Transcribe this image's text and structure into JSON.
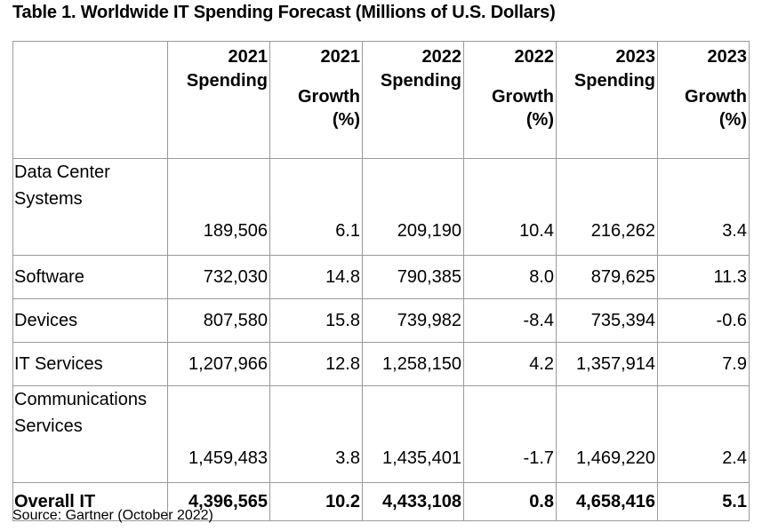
{
  "title": "Table 1. Worldwide IT Spending Forecast (Millions of U.S. Dollars)",
  "headers": [
    {
      "line1": "",
      "line2": ""
    },
    {
      "line1": "2021",
      "line2": "Spending"
    },
    {
      "line1": "2021",
      "line2": "Growth",
      "line3": "(%)"
    },
    {
      "line1": "2022",
      "line2": "Spending"
    },
    {
      "line1": "2022",
      "line2": "Growth",
      "line3": "(%)"
    },
    {
      "line1": "2023",
      "line2": "Spending"
    },
    {
      "line1": "2023",
      "line2": "Growth",
      "line3": "(%)"
    }
  ],
  "rows": [
    {
      "label_l1": "Data Center",
      "label_l2": "Systems",
      "values": [
        "189,506",
        "6.1",
        "209,190",
        "10.4",
        "216,262",
        "3.4"
      ]
    },
    {
      "label_l1": "Software",
      "values": [
        "732,030",
        "14.8",
        "790,385",
        "8.0",
        "879,625",
        "11.3"
      ]
    },
    {
      "label_l1": "Devices",
      "values": [
        "807,580",
        "15.8",
        "739,982",
        "-8.4",
        "735,394",
        "-0.6"
      ]
    },
    {
      "label_l1": "IT Services",
      "values": [
        "1,207,966",
        "12.8",
        "1,258,150",
        "4.2",
        "1,357,914",
        "7.9"
      ]
    },
    {
      "label_l1": "Communications",
      "label_l2": "Services",
      "values": [
        "1,459,483",
        "3.8",
        "1,435,401",
        "-1.7",
        "1,469,220",
        "2.4"
      ]
    },
    {
      "label_l1": "Overall IT",
      "values": [
        "4,396,565",
        "10.2",
        "4,433,108",
        "0.8",
        "4,658,416",
        "5.1"
      ]
    }
  ],
  "source": "Source: Gartner (October 2022)"
}
